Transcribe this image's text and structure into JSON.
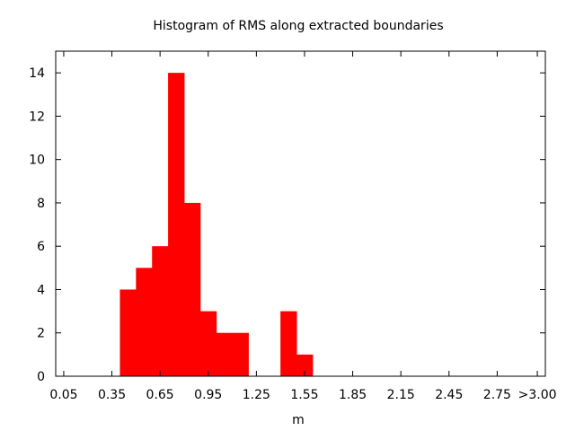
{
  "chart_data": {
    "type": "bar",
    "title": "Histogram of RMS along extracted boundaries",
    "xlabel": "m",
    "ylabel": "",
    "xlim": [
      0.0,
      3.05
    ],
    "ylim": [
      0,
      15
    ],
    "x_ticks": [
      {
        "value": 0.05,
        "label": "0.05"
      },
      {
        "value": 0.35,
        "label": "0.35"
      },
      {
        "value": 0.65,
        "label": "0.65"
      },
      {
        "value": 0.95,
        "label": "0.95"
      },
      {
        "value": 1.25,
        "label": "1.25"
      },
      {
        "value": 1.55,
        "label": "1.55"
      },
      {
        "value": 1.85,
        "label": "1.85"
      },
      {
        "value": 2.15,
        "label": "2.15"
      },
      {
        "value": 2.45,
        "label": "2.45"
      },
      {
        "value": 2.75,
        "label": "2.75"
      },
      {
        "value": 3.0,
        "label": ">3.00"
      }
    ],
    "y_ticks": [
      0,
      2,
      4,
      6,
      8,
      10,
      12,
      14
    ],
    "bar_color": "#ff0000",
    "bins": [
      {
        "start": 0.4,
        "end": 0.5,
        "count": 4
      },
      {
        "start": 0.5,
        "end": 0.6,
        "count": 5
      },
      {
        "start": 0.6,
        "end": 0.7,
        "count": 6
      },
      {
        "start": 0.7,
        "end": 0.8,
        "count": 14
      },
      {
        "start": 0.8,
        "end": 0.9,
        "count": 8
      },
      {
        "start": 0.9,
        "end": 1.0,
        "count": 3
      },
      {
        "start": 1.0,
        "end": 1.1,
        "count": 2
      },
      {
        "start": 1.1,
        "end": 1.2,
        "count": 2
      },
      {
        "start": 1.4,
        "end": 1.5,
        "count": 3
      },
      {
        "start": 1.5,
        "end": 1.6,
        "count": 1
      }
    ],
    "grid": false,
    "legend": "none"
  }
}
